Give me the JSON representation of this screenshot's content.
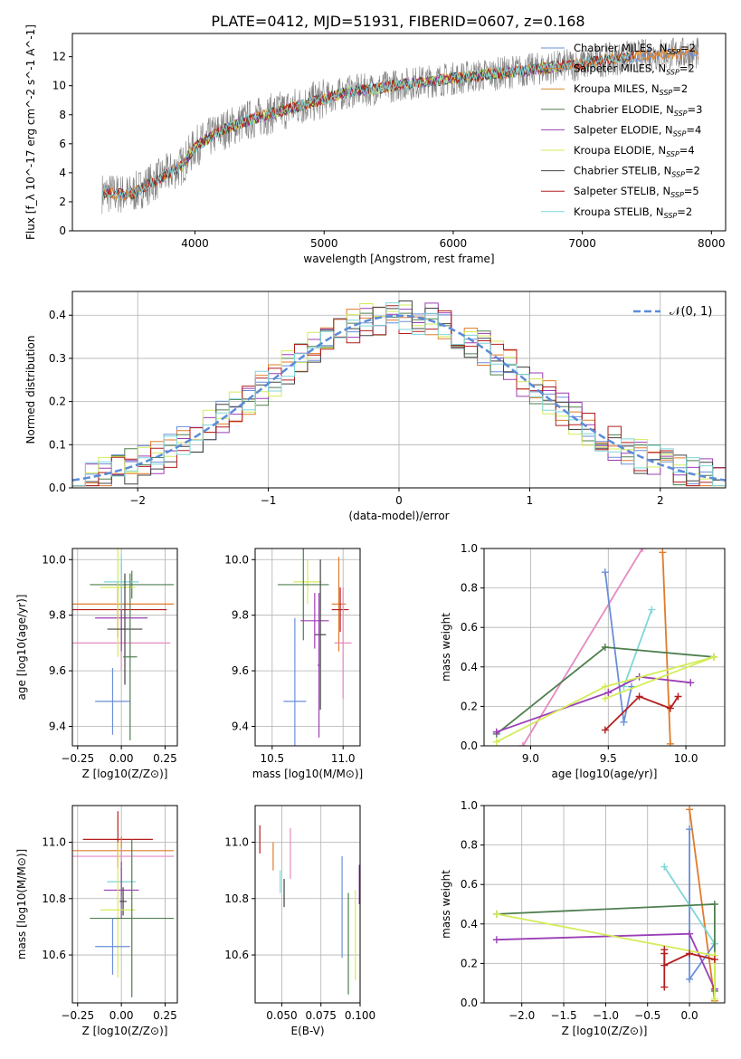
{
  "page_title": "PLATE=0412, MJD=51931, FIBERID=0607, z=0.168",
  "colors": {
    "Chabrier MILES": "#6a8fd8",
    "Salpeter MILES": "#e07b2a",
    "Kroupa MILES": "#d98a2e",
    "Chabrier ELODIE": "#4f7f4f",
    "Salpeter ELODIE": "#9b3fb5",
    "Kroupa ELODIE": "#d4ec5a",
    "Chabrier STELIB": "#444444",
    "Salpeter STELIB": "#b41e1e",
    "Kroupa STELIB": "#7fd6d8",
    "pink": "#e58ac0",
    "data": "#808080",
    "normal": "#5b8bd8"
  },
  "chart_data": [
    {
      "id": "spectrum",
      "type": "line",
      "title": "PLATE=0412, MJD=51931, FIBERID=0607, z=0.168",
      "xlabel": "wavelength [Angstrom, rest frame]",
      "ylabel": "Flux [f_λ 10^-17 erg cm^-2 s^-1 A^-1]",
      "xlim": [
        3050,
        8110
      ],
      "ylim": [
        0,
        13.6
      ],
      "xticks": [
        4000,
        5000,
        6000,
        7000,
        8000
      ],
      "yticks": [
        0,
        2,
        4,
        6,
        8,
        10,
        12
      ],
      "legend_position": "top-right",
      "legend": [
        {
          "name": "Chabrier MILES",
          "nssp": "2"
        },
        {
          "name": "Salpeter MILES",
          "nssp": "2"
        },
        {
          "name": "Kroupa MILES",
          "nssp": "2"
        },
        {
          "name": "Chabrier ELODIE",
          "nssp": "3"
        },
        {
          "name": "Salpeter ELODIE",
          "nssp": "4"
        },
        {
          "name": "Kroupa ELODIE",
          "nssp": "4"
        },
        {
          "name": "Chabrier STELIB",
          "nssp": "2"
        },
        {
          "name": "Salpeter STELIB",
          "nssp": "5"
        },
        {
          "name": "Kroupa STELIB",
          "nssp": "2"
        }
      ],
      "continuum_x": [
        3300,
        3500,
        3700,
        3900,
        4000,
        4200,
        4400,
        4600,
        4800,
        5000,
        5200,
        5400,
        5600,
        5800,
        6000,
        6200,
        6400,
        6600,
        6800,
        7000,
        7200,
        7400,
        7600
      ],
      "continuum_y": [
        2.6,
        2.5,
        3.5,
        4.5,
        5.8,
        6.9,
        7.6,
        8.1,
        8.6,
        9.1,
        9.6,
        9.8,
        10.1,
        10.3,
        10.5,
        10.7,
        10.9,
        11.1,
        11.3,
        11.5,
        11.8,
        12.0,
        12.2
      ]
    },
    {
      "id": "residuals",
      "type": "line",
      "xlabel": "(data-model)/error",
      "ylabel": "Normed distribution",
      "xlim": [
        -2.5,
        2.5
      ],
      "ylim": [
        0,
        0.455
      ],
      "xticks": [
        -2,
        -1,
        0,
        1,
        2
      ],
      "yticks": [
        0.0,
        0.1,
        0.2,
        0.3,
        0.4
      ],
      "legend_position": "top-right",
      "normal_label": "𝒩(0, 1)"
    },
    {
      "id": "age-vs-z",
      "type": "scatter",
      "xlabel": "Z [log10(Z/Z⊙)]",
      "ylabel": "age [log10(age/yr)]",
      "xlim": [
        -0.28,
        0.32
      ],
      "ylim": [
        9.33,
        10.04
      ],
      "xticks": [
        -0.25,
        0.0,
        0.25
      ],
      "yticks": [
        9.4,
        9.6,
        9.8,
        10.0
      ],
      "points": [
        {
          "c": "Salpeter STELIB",
          "x": -0.02,
          "y": 9.82,
          "xerr": 0.28,
          "yerr": 0.1
        },
        {
          "c": "Salpeter MILES",
          "x": 0.0,
          "y": 9.84,
          "xerr": 0.3,
          "yerr": 0.15
        },
        {
          "c": "pink",
          "x": 0.0,
          "y": 9.7,
          "xerr": 0.28,
          "yerr": 0.1
        },
        {
          "c": "Chabrier ELODIE",
          "x": 0.06,
          "y": 9.91,
          "xerr": 0.24,
          "yerr": 0.05
        },
        {
          "c": "Salpeter ELODIE",
          "x": 0.0,
          "y": 9.79,
          "xerr": 0.15,
          "yerr": 0.12
        },
        {
          "c": "Kroupa ELODIE",
          "x": -0.02,
          "y": 9.9,
          "xerr": 0.1,
          "yerr": 0.25
        },
        {
          "c": "Kroupa STELIB",
          "x": 0.0,
          "y": 9.92,
          "xerr": 0.1,
          "yerr": 0.1
        },
        {
          "c": "Chabrier MILES",
          "x": -0.05,
          "y": 9.49,
          "xerr": 0.1,
          "yerr": 0.12
        },
        {
          "c": "Chabrier STELIB",
          "x": 0.02,
          "y": 9.75,
          "xerr": 0.1,
          "yerr": 0.2
        },
        {
          "c": "Chabrier ELODIE",
          "x": 0.05,
          "y": 9.65,
          "xerr": 0.04,
          "yerr": 0.3
        }
      ]
    },
    {
      "id": "age-vs-mass",
      "type": "scatter",
      "xlabel": "mass [log10(M/M⊙)]",
      "ylabel": "",
      "xlim": [
        10.38,
        11.12
      ],
      "ylim": [
        9.33,
        10.04
      ],
      "xticks": [
        10.5,
        11.0
      ],
      "yticks": [
        9.4,
        9.6,
        9.8,
        10.0
      ],
      "points": [
        {
          "c": "Kroupa ELODIE",
          "x": 10.75,
          "y": 9.92,
          "xerr": 0.1,
          "yerr": 0.08
        },
        {
          "c": "Chabrier ELODIE",
          "x": 10.72,
          "y": 9.91,
          "xerr": 0.18,
          "yerr": 0.2
        },
        {
          "c": "Salpeter MILES",
          "x": 10.97,
          "y": 9.84,
          "xerr": 0.05,
          "yerr": 0.17
        },
        {
          "c": "Salpeter STELIB",
          "x": 10.98,
          "y": 9.82,
          "xerr": 0.06,
          "yerr": 0.08
        },
        {
          "c": "Salpeter ELODIE",
          "x": 10.8,
          "y": 9.78,
          "xerr": 0.1,
          "yerr": 0.1
        },
        {
          "c": "Chabrier STELIB",
          "x": 10.84,
          "y": 9.73,
          "xerr": 0.04,
          "yerr": 0.27
        },
        {
          "c": "pink",
          "x": 11.0,
          "y": 9.7,
          "xerr": 0.06,
          "yerr": 0.2
        },
        {
          "c": "Chabrier MILES",
          "x": 10.66,
          "y": 9.49,
          "xerr": 0.08,
          "yerr": 0.3
        },
        {
          "c": "Salpeter ELODIE",
          "x": 10.83,
          "y": 9.62,
          "xerr": 0.01,
          "yerr": 0.26
        }
      ]
    },
    {
      "id": "massweight-vs-age",
      "type": "line",
      "xlabel": "age [log10(age/yr)]",
      "ylabel": "mass weight",
      "xlim": [
        8.7,
        10.25
      ],
      "ylim": [
        0,
        1.0
      ],
      "xticks": [
        9.0,
        9.5,
        10.0
      ],
      "yticks": [
        0.0,
        0.2,
        0.4,
        0.6,
        0.8,
        1.0
      ],
      "series": [
        {
          "c": "pink",
          "x": [
            8.95,
            9.72
          ],
          "y": [
            0.0,
            1.0
          ]
        },
        {
          "c": "Salpeter MILES",
          "x": [
            9.85,
            9.9
          ],
          "y": [
            0.98,
            0.01
          ]
        },
        {
          "c": "Chabrier MILES",
          "x": [
            9.48,
            9.6,
            9.65
          ],
          "y": [
            0.88,
            0.12,
            0.3
          ]
        },
        {
          "c": "Kroupa STELIB",
          "x": [
            9.6,
            9.78
          ],
          "y": [
            0.3,
            0.69
          ]
        },
        {
          "c": "Chabrier ELODIE",
          "x": [
            8.78,
            9.48,
            10.18
          ],
          "y": [
            0.06,
            0.5,
            0.45
          ]
        },
        {
          "c": "Salpeter ELODIE",
          "x": [
            8.78,
            9.5,
            9.7,
            10.03
          ],
          "y": [
            0.07,
            0.27,
            0.35,
            0.32
          ]
        },
        {
          "c": "Kroupa ELODIE",
          "x": [
            8.78,
            9.48,
            10.18
          ],
          "y": [
            0.02,
            0.3,
            0.45
          ]
        },
        {
          "c": "Kroupa ELODIE",
          "x": [
            9.48,
            10.18
          ],
          "y": [
            0.24,
            0.45
          ]
        },
        {
          "c": "Salpeter STELIB",
          "x": [
            9.48,
            9.7,
            9.9,
            9.95
          ],
          "y": [
            0.08,
            0.25,
            0.19,
            0.25
          ]
        }
      ]
    },
    {
      "id": "mass-vs-z",
      "type": "scatter",
      "xlabel": "Z [log10(Z/Z⊙)]",
      "ylabel": "mass [log10(M/M⊙)]",
      "xlim": [
        -0.28,
        0.32
      ],
      "ylim": [
        10.43,
        11.13
      ],
      "xticks": [
        -0.25,
        0.0,
        0.25
      ],
      "yticks": [
        10.6,
        10.8,
        11.0
      ],
      "points": [
        {
          "c": "Salpeter STELIB",
          "x": -0.02,
          "y": 11.01,
          "xerr": 0.2,
          "yerr": 0.1
        },
        {
          "c": "Salpeter MILES",
          "x": 0.0,
          "y": 10.97,
          "xerr": 0.3,
          "yerr": 0.05
        },
        {
          "c": "pink",
          "x": 0.0,
          "y": 10.95,
          "xerr": 0.3,
          "yerr": 0.03
        },
        {
          "c": "Chabrier ELODIE",
          "x": 0.0,
          "y": 10.86,
          "xerr": 0.08,
          "yerr": 0.05
        },
        {
          "c": "Kroupa STELIB",
          "x": 0.0,
          "y": 10.86,
          "xerr": 0.08,
          "yerr": 0.03
        },
        {
          "c": "Salpeter ELODIE",
          "x": 0.0,
          "y": 10.83,
          "xerr": 0.1,
          "yerr": 0.1
        },
        {
          "c": "Chabrier STELIB",
          "x": 0.01,
          "y": 10.79,
          "xerr": 0.02,
          "yerr": 0.05
        },
        {
          "c": "Kroupa ELODIE",
          "x": -0.02,
          "y": 10.76,
          "xerr": 0.1,
          "yerr": 0.24
        },
        {
          "c": "Chabrier ELODIE",
          "x": 0.06,
          "y": 10.73,
          "xerr": 0.24,
          "yerr": 0.28
        },
        {
          "c": "Chabrier MILES",
          "x": -0.05,
          "y": 10.63,
          "xerr": 0.1,
          "yerr": 0.1
        }
      ]
    },
    {
      "id": "mass-vs-ebv",
      "type": "scatter",
      "xlabel": "E(B-V)",
      "ylabel": "",
      "xlim": [
        0.033,
        0.1
      ],
      "ylim": [
        10.43,
        11.13
      ],
      "xticks": [
        0.05,
        0.075,
        0.1
      ],
      "ytick_values": [
        10.6,
        10.8,
        11.0
      ],
      "yticks": [
        "10.6",
        "10.8",
        "11.0"
      ],
      "xtick_labels": [
        "0.050",
        "0.075",
        "0.100"
      ],
      "points": [
        {
          "c": "Salpeter STELIB",
          "x": 0.036,
          "y": 11.01,
          "yerr": 0.05
        },
        {
          "c": "Salpeter MILES",
          "x": 0.0445,
          "y": 10.95,
          "yerr": 0.05
        },
        {
          "c": "Kroupa STELIB",
          "x": 0.049,
          "y": 10.86,
          "yerr": 0.04
        },
        {
          "c": "Chabrier STELIB",
          "x": 0.0515,
          "y": 10.82,
          "yerr": 0.05
        },
        {
          "c": "pink",
          "x": 0.0555,
          "y": 10.96,
          "yerr": 0.09
        },
        {
          "c": "Chabrier MILES",
          "x": 0.0885,
          "y": 10.77,
          "yerr": 0.18
        },
        {
          "c": "Chabrier ELODIE",
          "x": 0.0925,
          "y": 10.64,
          "yerr": 0.18
        },
        {
          "c": "Salpeter ELODIE",
          "x": 0.0995,
          "y": 10.85,
          "yerr": 0.07
        },
        {
          "c": "Kroupa ELODIE",
          "x": 0.097,
          "y": 10.67,
          "yerr": 0.16
        }
      ]
    },
    {
      "id": "massweight-vs-z",
      "type": "line",
      "xlabel": "Z [log10(Z/Z⊙)]",
      "ylabel": "mass weight",
      "xlim": [
        -2.45,
        0.42
      ],
      "ylim": [
        0,
        1.0
      ],
      "xticks": [
        -2.0,
        -1.5,
        -1.0,
        -0.5,
        0.0
      ],
      "yticks": [
        0.0,
        0.2,
        0.4,
        0.6,
        0.8,
        1.0
      ],
      "series": [
        {
          "c": "Salpeter MILES",
          "x": [
            0.0,
            0.3
          ],
          "y": [
            0.98,
            0.01
          ]
        },
        {
          "c": "Chabrier MILES",
          "x": [
            0.0,
            0.0,
            0.3
          ],
          "y": [
            0.88,
            0.12,
            0.3
          ]
        },
        {
          "c": "Kroupa STELIB",
          "x": [
            -0.3,
            0.3
          ],
          "y": [
            0.69,
            0.3
          ]
        },
        {
          "c": "Chabrier ELODIE",
          "x": [
            -2.3,
            0.3,
            0.3
          ],
          "y": [
            0.45,
            0.5,
            0.06
          ]
        },
        {
          "c": "Salpeter ELODIE",
          "x": [
            -2.3,
            0.0,
            0.3
          ],
          "y": [
            0.32,
            0.35,
            0.07
          ]
        },
        {
          "c": "Kroupa ELODIE",
          "x": [
            -2.3,
            0.3,
            0.3
          ],
          "y": [
            0.45,
            0.24,
            0.02
          ]
        },
        {
          "c": "Salpeter STELIB",
          "x": [
            -0.3,
            -0.3,
            0.0,
            0.3
          ],
          "y": [
            0.25,
            0.19,
            0.25,
            0.22
          ]
        },
        {
          "c": "Salpeter STELIB",
          "x": [
            -0.3,
            -0.3
          ],
          "y": [
            0.08,
            0.27
          ]
        }
      ]
    }
  ]
}
